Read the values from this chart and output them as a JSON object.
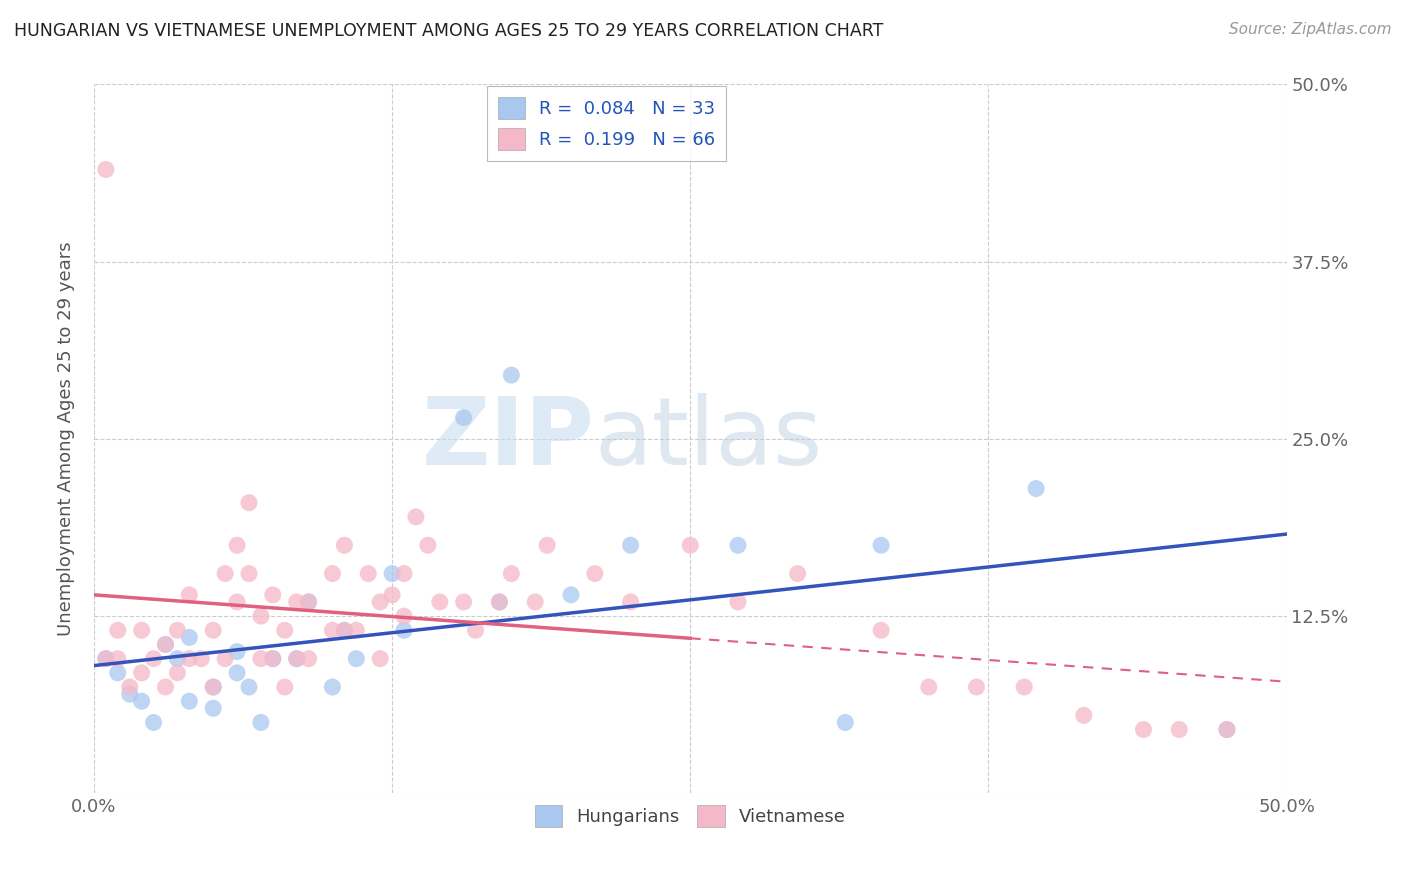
{
  "title": "HUNGARIAN VS VIETNAMESE UNEMPLOYMENT AMONG AGES 25 TO 29 YEARS CORRELATION CHART",
  "source": "Source: ZipAtlas.com",
  "ylabel": "Unemployment Among Ages 25 to 29 years",
  "xlim": [
    0.0,
    0.5
  ],
  "ylim": [
    0.0,
    0.5
  ],
  "xtick_vals": [
    0.0,
    0.125,
    0.25,
    0.375,
    0.5
  ],
  "xtick_labels": [
    "0.0%",
    "",
    "",
    "",
    "50.0%"
  ],
  "ytick_vals": [
    0.0,
    0.125,
    0.25,
    0.375,
    0.5
  ],
  "ytick_labels_right": [
    "",
    "12.5%",
    "25.0%",
    "37.5%",
    "50.0%"
  ],
  "background_color": "#ffffff",
  "legend_R_hungarian": "0.084",
  "legend_N_hungarian": "33",
  "legend_R_vietnamese": "0.199",
  "legend_N_vietnamese": "66",
  "hungarian_color": "#a8c8f0",
  "vietnamese_color": "#f5b8c8",
  "hungarian_line_color": "#3355bb",
  "vietnamese_line_color": "#e06080",
  "watermark_zip": "ZIP",
  "watermark_atlas": "atlas",
  "hun_x": [
    0.005,
    0.01,
    0.015,
    0.02,
    0.025,
    0.03,
    0.035,
    0.04,
    0.04,
    0.05,
    0.05,
    0.06,
    0.06,
    0.065,
    0.07,
    0.075,
    0.085,
    0.09,
    0.1,
    0.105,
    0.11,
    0.125,
    0.13,
    0.155,
    0.17,
    0.175,
    0.2,
    0.225,
    0.27,
    0.315,
    0.33,
    0.395,
    0.475
  ],
  "hun_y": [
    0.095,
    0.085,
    0.07,
    0.065,
    0.05,
    0.105,
    0.095,
    0.065,
    0.11,
    0.075,
    0.06,
    0.1,
    0.085,
    0.075,
    0.05,
    0.095,
    0.095,
    0.135,
    0.075,
    0.115,
    0.095,
    0.155,
    0.115,
    0.265,
    0.135,
    0.295,
    0.14,
    0.175,
    0.175,
    0.05,
    0.175,
    0.215,
    0.045
  ],
  "vie_x": [
    0.005,
    0.005,
    0.01,
    0.01,
    0.015,
    0.02,
    0.02,
    0.025,
    0.03,
    0.03,
    0.035,
    0.035,
    0.04,
    0.04,
    0.045,
    0.05,
    0.05,
    0.055,
    0.055,
    0.06,
    0.06,
    0.065,
    0.065,
    0.07,
    0.07,
    0.075,
    0.075,
    0.08,
    0.08,
    0.085,
    0.085,
    0.09,
    0.09,
    0.1,
    0.1,
    0.105,
    0.105,
    0.11,
    0.115,
    0.12,
    0.12,
    0.125,
    0.13,
    0.13,
    0.135,
    0.14,
    0.145,
    0.155,
    0.16,
    0.17,
    0.175,
    0.185,
    0.19,
    0.21,
    0.225,
    0.25,
    0.27,
    0.295,
    0.33,
    0.35,
    0.37,
    0.39,
    0.415,
    0.44,
    0.455,
    0.475
  ],
  "vie_y": [
    0.44,
    0.095,
    0.095,
    0.115,
    0.075,
    0.085,
    0.115,
    0.095,
    0.075,
    0.105,
    0.085,
    0.115,
    0.095,
    0.14,
    0.095,
    0.075,
    0.115,
    0.095,
    0.155,
    0.135,
    0.175,
    0.155,
    0.205,
    0.095,
    0.125,
    0.095,
    0.14,
    0.075,
    0.115,
    0.095,
    0.135,
    0.095,
    0.135,
    0.115,
    0.155,
    0.115,
    0.175,
    0.115,
    0.155,
    0.135,
    0.095,
    0.14,
    0.125,
    0.155,
    0.195,
    0.175,
    0.135,
    0.135,
    0.115,
    0.135,
    0.155,
    0.135,
    0.175,
    0.155,
    0.135,
    0.175,
    0.135,
    0.155,
    0.115,
    0.075,
    0.075,
    0.075,
    0.055,
    0.045,
    0.045,
    0.045
  ],
  "vie_line_solid_end": 0.25,
  "vie_line_dashed_start": 0.25
}
